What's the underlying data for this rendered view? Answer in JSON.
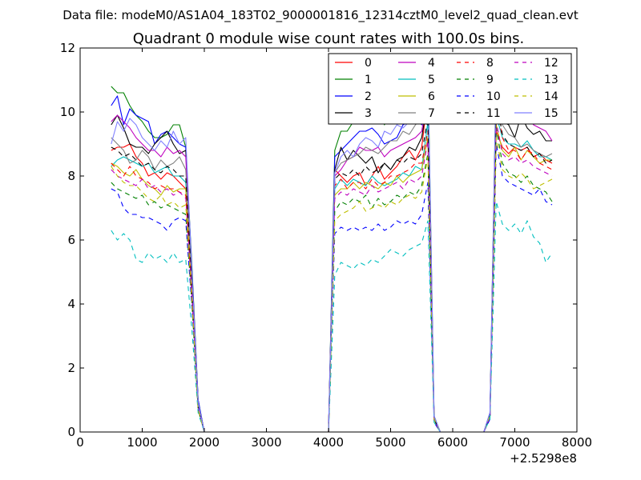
{
  "chart_data": {
    "type": "line",
    "suptitle": "Data file: modeM0/AS1A04_183T02_9000001816_12314cztM0_level2_quad_clean.evt",
    "title": "Quadrant 0 module wise count rates with 100.0s bins.",
    "xlabel": "",
    "ylabel": "",
    "x_offset_label": "+2.5298e8",
    "xlim": [
      0,
      8000
    ],
    "ylim": [
      0,
      12
    ],
    "xticks": [
      0,
      1000,
      2000,
      3000,
      4000,
      5000,
      6000,
      7000,
      8000
    ],
    "xtick_labels": [
      "0",
      "1000",
      "2000",
      "3000",
      "4000",
      "5000",
      "6000",
      "7000",
      "8000"
    ],
    "yticks": [
      0,
      2,
      4,
      6,
      8,
      10,
      12
    ],
    "ytick_labels": [
      "0",
      "2",
      "4",
      "6",
      "8",
      "10",
      "12"
    ],
    "grid": false,
    "legend_position": "top-right",
    "legend_columns": 4,
    "x": [
      500,
      600,
      700,
      800,
      900,
      1000,
      1100,
      1200,
      1300,
      1400,
      1500,
      1600,
      1700,
      1800,
      1900,
      2000,
      2500,
      3000,
      3500,
      4000,
      4100,
      4200,
      4300,
      4400,
      4500,
      4600,
      4700,
      4800,
      4900,
      5000,
      5100,
      5200,
      5300,
      5400,
      5500,
      5600,
      5700,
      5800,
      5900,
      6000,
      6500,
      6600,
      6700,
      6800,
      6900,
      7000,
      7100,
      7200,
      7300,
      7400,
      7500,
      7600
    ],
    "series": [
      {
        "name": "0",
        "color": "#ff0000",
        "dash": "solid",
        "values": [
          8.8,
          8.9,
          8.9,
          9.0,
          8.6,
          8.4,
          8.0,
          8.1,
          7.9,
          8.1,
          8.0,
          7.8,
          7.6,
          4.5,
          0.8,
          0.0,
          0.0,
          0.0,
          0.0,
          0.0,
          8.2,
          8.0,
          7.8,
          8.0,
          8.1,
          7.7,
          8.0,
          8.3,
          7.9,
          8.1,
          8.3,
          8.6,
          8.8,
          8.5,
          8.9,
          10.5,
          0.4,
          0.0,
          0.0,
          0.0,
          0.0,
          0.5,
          9.4,
          8.9,
          8.7,
          8.9,
          8.8,
          8.9,
          8.6,
          8.7,
          8.5,
          8.4
        ]
      },
      {
        "name": "1",
        "color": "#008000",
        "dash": "solid",
        "values": [
          10.8,
          10.6,
          10.6,
          10.2,
          9.9,
          9.7,
          9.4,
          9.2,
          9.2,
          9.3,
          9.6,
          9.6,
          8.9,
          5.2,
          1.0,
          0.0,
          0.0,
          0.0,
          0.0,
          0.0,
          8.8,
          9.4,
          9.4,
          9.7,
          9.8,
          10.0,
          10.1,
          10.1,
          9.6,
          10.1,
          10.3,
          10.4,
          10.7,
          10.6,
          10.8,
          11.5,
          0.5,
          0.0,
          0.0,
          0.0,
          0.0,
          0.6,
          11.4,
          11.1,
          10.4,
          10.6,
          10.7,
          10.5,
          10.2,
          10.0,
          9.9,
          9.8
        ]
      },
      {
        "name": "2",
        "color": "#0000ff",
        "dash": "solid",
        "values": [
          10.2,
          10.5,
          9.6,
          10.1,
          9.9,
          9.8,
          9.7,
          9.0,
          9.3,
          9.4,
          9.2,
          9.0,
          8.9,
          5.1,
          1.0,
          0.0,
          0.0,
          0.0,
          0.0,
          0.0,
          8.6,
          8.8,
          9.0,
          9.2,
          9.4,
          9.4,
          9.5,
          9.3,
          9.0,
          9.1,
          9.2,
          9.6,
          9.7,
          9.8,
          9.6,
          10.9,
          0.4,
          0.0,
          0.0,
          0.0,
          0.0,
          0.6,
          11.0,
          10.4,
          10.0,
          10.4,
          10.2,
          10.0,
          9.9,
          9.9,
          10.1,
          9.9
        ]
      },
      {
        "name": "3",
        "color": "#000000",
        "dash": "solid",
        "values": [
          9.6,
          9.9,
          9.5,
          9.0,
          8.9,
          8.9,
          8.7,
          9.0,
          9.2,
          9.4,
          9.0,
          8.7,
          8.8,
          5.0,
          0.9,
          0.0,
          0.0,
          0.0,
          0.0,
          0.0,
          8.2,
          8.9,
          8.5,
          8.8,
          8.6,
          8.4,
          8.6,
          8.1,
          8.4,
          8.2,
          8.5,
          8.6,
          8.9,
          8.8,
          9.2,
          10.4,
          0.4,
          0.0,
          0.0,
          0.0,
          0.0,
          0.5,
          10.7,
          9.7,
          9.6,
          9.2,
          9.9,
          9.5,
          9.3,
          9.4,
          9.1,
          9.1
        ]
      },
      {
        "name": "4",
        "color": "#bf00bf",
        "dash": "solid",
        "values": [
          9.7,
          9.9,
          9.7,
          9.5,
          9.2,
          9.0,
          8.8,
          8.8,
          8.6,
          8.9,
          8.7,
          8.8,
          8.6,
          4.9,
          0.9,
          0.0,
          0.0,
          0.0,
          0.0,
          0.0,
          8.0,
          8.2,
          8.5,
          8.6,
          8.9,
          8.8,
          8.8,
          8.9,
          8.6,
          8.8,
          8.9,
          9.0,
          9.1,
          9.2,
          9.4,
          10.5,
          0.4,
          0.0,
          0.0,
          0.0,
          0.0,
          0.5,
          10.9,
          10.1,
          9.8,
          9.7,
          9.8,
          9.9,
          9.6,
          9.5,
          9.4,
          9.1
        ]
      },
      {
        "name": "5",
        "color": "#00bfbf",
        "dash": "solid",
        "values": [
          8.3,
          8.5,
          8.6,
          8.5,
          8.4,
          8.3,
          8.4,
          8.1,
          8.2,
          8.3,
          8.0,
          8.0,
          7.8,
          4.6,
          0.8,
          0.0,
          0.0,
          0.0,
          0.0,
          0.0,
          7.6,
          7.9,
          7.7,
          7.9,
          7.8,
          7.7,
          8.0,
          7.8,
          7.7,
          7.8,
          7.9,
          8.1,
          8.0,
          8.3,
          8.2,
          9.7,
          0.4,
          0.0,
          0.0,
          0.0,
          0.0,
          0.5,
          9.9,
          9.2,
          9.0,
          9.0,
          8.9,
          9.1,
          8.8,
          8.6,
          8.6,
          8.5
        ]
      },
      {
        "name": "6",
        "color": "#bfbf00",
        "dash": "solid",
        "values": [
          8.4,
          8.3,
          8.1,
          8.0,
          8.2,
          7.9,
          7.7,
          7.6,
          7.4,
          7.7,
          7.5,
          7.6,
          7.6,
          4.4,
          0.8,
          0.0,
          0.0,
          0.0,
          0.0,
          0.0,
          7.4,
          7.6,
          7.6,
          7.8,
          7.6,
          7.8,
          7.7,
          7.6,
          7.8,
          7.7,
          8.0,
          7.8,
          8.0,
          8.1,
          8.2,
          9.2,
          0.4,
          0.0,
          0.0,
          0.0,
          0.0,
          0.5,
          9.6,
          8.8,
          8.6,
          8.9,
          8.5,
          8.8,
          8.6,
          8.4,
          8.5,
          8.5
        ]
      },
      {
        "name": "7",
        "color": "#808080",
        "dash": "solid",
        "values": [
          9.2,
          9.0,
          8.8,
          8.4,
          8.5,
          8.8,
          8.6,
          8.2,
          8.5,
          8.3,
          8.4,
          8.6,
          8.2,
          4.8,
          0.9,
          0.0,
          0.0,
          0.0,
          0.0,
          0.0,
          8.1,
          8.4,
          8.5,
          8.6,
          8.7,
          8.9,
          8.8,
          8.7,
          8.9,
          9.1,
          9.1,
          9.4,
          9.3,
          9.6,
          9.8,
          10.9,
          0.4,
          0.0,
          0.0,
          0.0,
          0.0,
          0.5,
          10.4,
          9.6,
          9.3,
          9.2,
          8.9,
          9.0,
          8.8,
          8.7,
          8.6,
          8.7
        ]
      },
      {
        "name": "8",
        "color": "#ff0000",
        "dash": "dashed",
        "values": [
          8.4,
          8.2,
          8.0,
          8.3,
          8.0,
          7.9,
          7.8,
          7.6,
          7.7,
          7.6,
          7.6,
          7.5,
          7.4,
          4.3,
          0.8,
          0.0,
          0.0,
          0.0,
          0.0,
          0.0,
          7.7,
          7.9,
          7.6,
          7.8,
          7.8,
          7.6,
          7.9,
          7.7,
          7.8,
          8.0,
          8.0,
          8.1,
          8.2,
          8.4,
          8.4,
          9.4,
          0.4,
          0.0,
          0.0,
          0.0,
          0.0,
          0.5,
          10.3,
          9.2,
          8.8,
          8.8,
          8.5,
          8.8,
          8.7,
          8.4,
          8.3,
          8.2
        ]
      },
      {
        "name": "9",
        "color": "#008000",
        "dash": "dashed",
        "values": [
          7.8,
          7.6,
          7.5,
          7.4,
          7.3,
          7.4,
          7.1,
          7.2,
          7.0,
          7.1,
          7.0,
          6.9,
          6.8,
          4.0,
          0.7,
          0.0,
          0.0,
          0.0,
          0.0,
          0.0,
          6.9,
          7.2,
          7.1,
          7.3,
          7.2,
          7.4,
          7.0,
          7.3,
          7.1,
          7.2,
          7.4,
          7.3,
          7.5,
          7.4,
          7.7,
          8.7,
          0.4,
          0.0,
          0.0,
          0.0,
          0.0,
          0.5,
          9.5,
          8.4,
          8.1,
          8.0,
          7.8,
          8.0,
          7.7,
          7.6,
          7.5,
          7.2
        ]
      },
      {
        "name": "10",
        "color": "#0000ff",
        "dash": "dashed",
        "values": [
          7.6,
          7.5,
          7.0,
          6.8,
          6.8,
          6.7,
          6.7,
          6.6,
          6.5,
          6.3,
          6.6,
          6.7,
          6.6,
          3.9,
          0.7,
          0.0,
          0.0,
          0.0,
          0.0,
          0.0,
          6.2,
          6.4,
          6.3,
          6.4,
          6.3,
          6.4,
          6.3,
          6.5,
          6.3,
          6.4,
          6.6,
          6.5,
          6.6,
          6.5,
          6.8,
          7.8,
          0.3,
          0.0,
          0.0,
          0.0,
          0.0,
          0.4,
          9.0,
          8.0,
          7.8,
          7.7,
          7.6,
          7.5,
          7.4,
          7.6,
          7.2,
          7.1
        ]
      },
      {
        "name": "11",
        "color": "#000000",
        "dash": "dashed",
        "values": [
          8.9,
          8.8,
          8.6,
          8.7,
          8.5,
          8.3,
          8.4,
          8.2,
          8.1,
          8.3,
          8.2,
          8.0,
          8.0,
          4.6,
          0.8,
          0.0,
          0.0,
          0.0,
          0.0,
          0.0,
          7.9,
          8.1,
          8.0,
          8.2,
          8.0,
          8.3,
          8.1,
          8.2,
          8.4,
          8.2,
          8.5,
          8.4,
          8.6,
          8.5,
          8.7,
          9.8,
          0.4,
          0.0,
          0.0,
          0.0,
          0.0,
          0.5,
          10.4,
          9.3,
          9.0,
          8.9,
          8.8,
          8.9,
          8.6,
          8.7,
          8.4,
          8.5
        ]
      },
      {
        "name": "12",
        "color": "#bf00bf",
        "dash": "dashed",
        "values": [
          8.2,
          8.0,
          7.9,
          7.8,
          7.7,
          7.9,
          7.6,
          7.7,
          7.5,
          7.6,
          7.4,
          7.5,
          7.3,
          4.3,
          0.8,
          0.0,
          0.0,
          0.0,
          0.0,
          0.0,
          7.3,
          7.5,
          7.4,
          7.6,
          7.5,
          7.4,
          7.7,
          7.5,
          7.6,
          7.7,
          7.8,
          7.6,
          7.9,
          7.8,
          8.0,
          9.1,
          0.4,
          0.0,
          0.0,
          0.0,
          0.0,
          0.5,
          9.7,
          8.7,
          8.5,
          8.6,
          8.4,
          8.5,
          8.3,
          8.2,
          8.1,
          8.0
        ]
      },
      {
        "name": "13",
        "color": "#00bfbf",
        "dash": "dashed",
        "values": [
          6.3,
          6.0,
          6.2,
          6.0,
          5.4,
          5.3,
          5.6,
          5.4,
          5.5,
          5.3,
          5.6,
          5.3,
          5.4,
          3.2,
          0.6,
          0.0,
          0.0,
          0.0,
          0.0,
          0.0,
          4.9,
          5.3,
          5.2,
          5.1,
          5.3,
          5.2,
          5.4,
          5.3,
          5.5,
          5.7,
          5.6,
          5.5,
          5.7,
          5.8,
          5.9,
          6.6,
          0.3,
          0.0,
          0.0,
          0.0,
          0.0,
          0.4,
          7.2,
          6.5,
          6.3,
          6.5,
          6.2,
          6.6,
          6.1,
          5.9,
          5.3,
          5.6
        ]
      },
      {
        "name": "14",
        "color": "#bfbf00",
        "dash": "dashed",
        "values": [
          8.3,
          8.0,
          7.8,
          7.7,
          7.7,
          7.5,
          7.3,
          7.2,
          7.4,
          7.1,
          7.2,
          7.0,
          7.1,
          4.1,
          0.7,
          0.0,
          0.0,
          0.0,
          0.0,
          0.0,
          6.6,
          6.8,
          6.9,
          7.0,
          7.2,
          6.9,
          7.0,
          7.1,
          7.0,
          7.2,
          7.1,
          7.3,
          7.4,
          7.3,
          7.5,
          8.6,
          0.4,
          0.0,
          0.0,
          0.0,
          0.0,
          0.5,
          9.2,
          8.2,
          8.0,
          7.9,
          8.1,
          7.9,
          7.6,
          7.7,
          7.8,
          7.9
        ]
      },
      {
        "name": "15",
        "color": "#8080ff",
        "dash": "solid",
        "values": [
          9.0,
          9.7,
          9.4,
          9.8,
          9.6,
          9.2,
          9.0,
          8.8,
          9.1,
          8.9,
          9.4,
          9.0,
          9.2,
          5.0,
          0.9,
          0.0,
          0.0,
          0.0,
          0.0,
          0.0,
          8.1,
          8.6,
          8.8,
          8.6,
          9.0,
          9.2,
          9.1,
          8.9,
          9.4,
          9.3,
          9.6,
          9.5,
          9.7,
          9.9,
          10.2,
          11.4,
          0.5,
          0.0,
          0.0,
          0.0,
          0.0,
          0.6,
          11.2,
          11.0,
          10.5,
          10.2,
          10.4,
          10.8,
          10.4,
          10.1,
          10.3,
          9.8
        ]
      }
    ]
  }
}
